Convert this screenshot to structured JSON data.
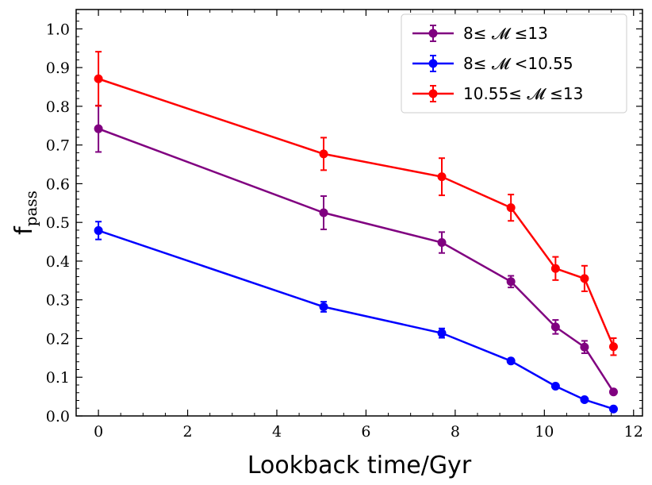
{
  "chart_data": {
    "type": "line",
    "xlabel": "Lookback time/Gyr",
    "ylabel_main": "f",
    "ylabel_sub": "pass",
    "xlim": [
      -0.5,
      12.2
    ],
    "ylim": [
      0.0,
      1.05
    ],
    "x_ticks": [
      0,
      2,
      4,
      6,
      8,
      10,
      12
    ],
    "x_tick_labels": [
      "0",
      "2",
      "4",
      "6",
      "8",
      "10",
      "12"
    ],
    "y_ticks": [
      0.0,
      0.1,
      0.2,
      0.3,
      0.4,
      0.5,
      0.6,
      0.7,
      0.8,
      0.9,
      1.0
    ],
    "y_tick_labels": [
      "0.0",
      "0.1",
      "0.2",
      "0.3",
      "0.4",
      "0.5",
      "0.6",
      "0.7",
      "0.8",
      "0.9",
      "1.0"
    ],
    "legend_position": "top-right",
    "grid": false,
    "series": [
      {
        "name": "8≤ 𝓜 ≤13",
        "color": "#800080",
        "x": [
          0,
          5.05,
          7.7,
          9.25,
          10.25,
          10.9,
          11.55
        ],
        "y": [
          0.742,
          0.525,
          0.448,
          0.347,
          0.23,
          0.178,
          0.062
        ],
        "err": [
          0.06,
          0.043,
          0.027,
          0.015,
          0.018,
          0.016,
          0.005
        ]
      },
      {
        "name": "8≤ 𝓜 <10.55",
        "color": "#0000ff",
        "x": [
          0,
          5.05,
          7.7,
          9.25,
          10.25,
          10.9,
          11.55
        ],
        "y": [
          0.479,
          0.282,
          0.214,
          0.142,
          0.077,
          0.042,
          0.018
        ],
        "err": [
          0.023,
          0.013,
          0.012,
          0.006,
          0.005,
          0.004,
          0.003
        ]
      },
      {
        "name": "10.55≤ 𝓜 ≤13",
        "color": "#ff0000",
        "x": [
          0,
          5.05,
          7.7,
          9.25,
          10.25,
          10.9,
          11.55
        ],
        "y": [
          0.871,
          0.677,
          0.618,
          0.538,
          0.381,
          0.355,
          0.179
        ],
        "err": [
          0.07,
          0.042,
          0.048,
          0.034,
          0.03,
          0.033,
          0.022
        ]
      }
    ]
  }
}
